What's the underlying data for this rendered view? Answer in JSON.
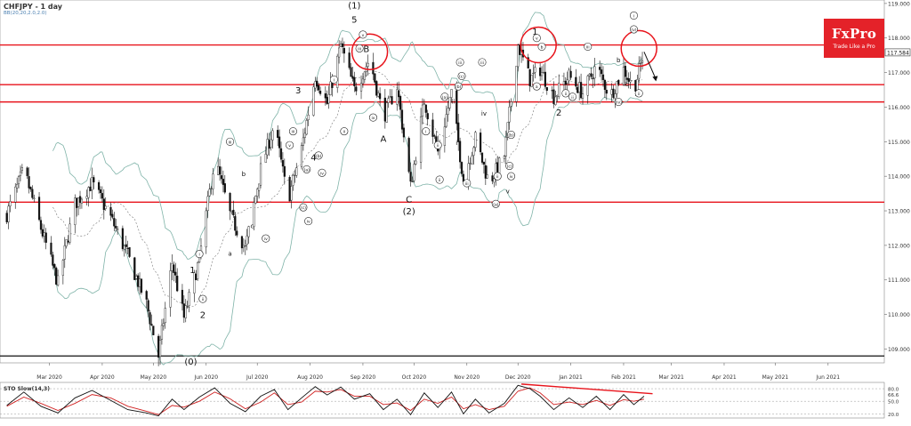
{
  "header": {
    "title": "CHFJPY - 1 day",
    "subtitle": "BB(20,20,2.0,2.0)"
  },
  "logo": {
    "name": "FxPro",
    "tagline": "Trade Like a Pro"
  },
  "colors": {
    "bull": "#2a8a2a",
    "bear": "#d02020",
    "resistance": "#e8131b",
    "band": "#7fb3a8",
    "price_box": "#ffffff",
    "sto_k": "#111111",
    "sto_d": "#d02020"
  },
  "chart_data": [
    {
      "type": "candlestick",
      "title": "CHFJPY - 1 day",
      "indicator": "BB(20,20,2.0,2.0)",
      "y_axis": {
        "range": [
          108.6,
          119.1
        ],
        "ticks": [
          "119.000",
          "118.000",
          "117.000",
          "116.000",
          "115.000",
          "114.000",
          "113.000",
          "112.000",
          "111.000",
          "110.000",
          "109.000"
        ],
        "last_price": "117.584"
      },
      "x_axis": {
        "labels": [
          "Mar 2020",
          "Apr 2020",
          "May 2020",
          "Jun 2020",
          "Jul 2020",
          "Aug 2020",
          "Sep 2020",
          "Oct 2020",
          "Nov 2020",
          "Dec 2020",
          "Jan 2021",
          "Feb 2021",
          "Mar 2021",
          "Apr 2021",
          "May 2021",
          "Jun 2021"
        ]
      },
      "horizontal_lines": [
        117.8,
        116.65,
        116.15,
        113.25,
        108.8
      ],
      "path": [
        [
          "2020-02-05",
          112.9
        ],
        [
          "2020-02-15",
          114.2
        ],
        [
          "2020-02-25",
          112.5
        ],
        [
          "2020-03-06",
          110.9
        ],
        [
          "2020-03-16",
          113.2
        ],
        [
          "2020-03-26",
          113.8
        ],
        [
          "2020-04-06",
          112.8
        ],
        [
          "2020-04-16",
          111.7
        ],
        [
          "2020-04-27",
          110.3
        ],
        [
          "2020-05-04",
          108.8
        ],
        [
          "2020-05-12",
          111.5
        ],
        [
          "2020-05-19",
          109.9
        ],
        [
          "2020-05-28",
          111.6
        ],
        [
          "2020-06-06",
          114.5
        ],
        [
          "2020-06-15",
          112.9
        ],
        [
          "2020-06-24",
          111.9
        ],
        [
          "2020-07-03",
          114.2
        ],
        [
          "2020-07-11",
          115.5
        ],
        [
          "2020-07-19",
          113.3
        ],
        [
          "2020-07-27",
          114.8
        ],
        [
          "2020-08-04",
          116.9
        ],
        [
          "2020-08-11",
          116.1
        ],
        [
          "2020-08-19",
          117.8
        ],
        [
          "2020-08-27",
          116.5
        ],
        [
          "2020-09-05",
          117.4
        ],
        [
          "2020-09-13",
          115.7
        ],
        [
          "2020-09-21",
          116.6
        ],
        [
          "2020-09-29",
          113.7
        ],
        [
          "2020-10-07",
          116.2
        ],
        [
          "2020-10-15",
          114.7
        ],
        [
          "2020-10-23",
          116.4
        ],
        [
          "2020-10-30",
          113.9
        ],
        [
          "2020-11-06",
          115.1
        ],
        [
          "2020-11-14",
          113.8
        ],
        [
          "2020-11-23",
          114.6
        ],
        [
          "2020-12-01",
          117.8
        ],
        [
          "2020-12-08",
          116.8
        ],
        [
          "2020-12-14",
          117.1
        ],
        [
          "2020-12-22",
          116.3
        ],
        [
          "2020-12-31",
          116.9
        ],
        [
          "2021-01-08",
          116.4
        ],
        [
          "2021-01-16",
          117.2
        ],
        [
          "2021-01-24",
          116.3
        ],
        [
          "2021-02-01",
          117.1
        ],
        [
          "2021-02-07",
          116.5
        ],
        [
          "2021-02-13",
          117.6
        ]
      ],
      "wave_labels": [
        {
          "text": "(1)",
          "date": "2020-08-27",
          "y": 118.85
        },
        {
          "text": "5",
          "date": "2020-08-27",
          "y": 118.45
        },
        {
          "text": "3",
          "date": "2020-07-25",
          "y": 116.4
        },
        {
          "text": "4",
          "date": "2020-08-03",
          "y": 114.45
        },
        {
          "text": "1",
          "date": "2020-05-24",
          "y": 111.2
        },
        {
          "text": "2",
          "date": "2020-05-30",
          "y": 109.9
        },
        {
          "text": "(0)",
          "date": "2020-05-23",
          "y": 108.55
        },
        {
          "text": "A",
          "date": "2020-09-13",
          "y": 115.0
        },
        {
          "text": "B",
          "date": "2020-09-03",
          "y": 117.6
        },
        {
          "text": "C",
          "date": "2020-09-28",
          "y": 113.25
        },
        {
          "text": "(2)",
          "date": "2020-09-28",
          "y": 112.9
        },
        {
          "text": "1",
          "date": "2020-12-11",
          "y": 118.1
        },
        {
          "text": "2",
          "date": "2020-12-25",
          "y": 115.75
        },
        {
          "text": "a",
          "date": "2020-06-15",
          "y": 111.7
        },
        {
          "text": "b",
          "date": "2020-06-23",
          "y": 114.0
        },
        {
          "text": "c",
          "date": "2020-06-28",
          "y": 112.5
        },
        {
          "text": "i",
          "date": "2020-10-26",
          "y": 114.9
        },
        {
          "text": "ii",
          "date": "2020-10-24",
          "y": 116.1
        },
        {
          "text": "iv",
          "date": "2020-11-11",
          "y": 115.75
        },
        {
          "text": "v",
          "date": "2020-11-25",
          "y": 113.5
        },
        {
          "text": "a",
          "date": "2021-01-29",
          "y": 116.05
        },
        {
          "text": "b",
          "date": "2021-01-29",
          "y": 117.3
        },
        {
          "text": "c",
          "date": "2021-02-03",
          "y": 116.6
        }
      ],
      "circled_labels": [
        {
          "text": "i",
          "date": "2020-05-28",
          "y": 111.75
        },
        {
          "text": "ii",
          "date": "2020-05-30",
          "y": 110.45
        },
        {
          "text": "iii",
          "date": "2020-06-15",
          "y": 115.0
        },
        {
          "text": "iii",
          "date": "2020-07-22",
          "y": 115.3
        },
        {
          "text": "iv",
          "date": "2020-07-06",
          "y": 112.2
        },
        {
          "text": "v",
          "date": "2020-07-20",
          "y": 114.9
        },
        {
          "text": "(a)",
          "date": "2020-07-30",
          "y": 114.2
        },
        {
          "text": "(b)",
          "date": "2020-08-06",
          "y": 114.6
        },
        {
          "text": "(c)",
          "date": "2020-07-28",
          "y": 113.1
        },
        {
          "text": "iv",
          "date": "2020-07-31",
          "y": 112.7
        },
        {
          "text": "iv",
          "date": "2020-08-08",
          "y": 114.1
        },
        {
          "text": "i",
          "date": "2020-08-15",
          "y": 116.8
        },
        {
          "text": "ii",
          "date": "2020-08-21",
          "y": 115.3
        },
        {
          "text": "iii",
          "date": "2020-08-30",
          "y": 117.7
        },
        {
          "text": "iv",
          "date": "2020-09-07",
          "y": 115.7
        },
        {
          "text": "v",
          "date": "2020-09-01",
          "y": 118.1
        },
        {
          "text": "(a)",
          "date": "2020-10-19",
          "y": 116.3
        },
        {
          "text": "(b)",
          "date": "2020-10-27",
          "y": 116.6
        },
        {
          "text": "(c)",
          "date": "2020-10-29",
          "y": 116.9
        },
        {
          "text": "i",
          "date": "2020-10-08",
          "y": 115.3
        },
        {
          "text": "ii",
          "date": "2020-10-15",
          "y": 114.9
        },
        {
          "text": "ii",
          "date": "2020-10-16",
          "y": 113.9
        },
        {
          "text": "iii",
          "date": "2020-10-28",
          "y": 117.3
        },
        {
          "text": "iii",
          "date": "2020-11-01",
          "y": 113.8
        },
        {
          "text": "iii",
          "date": "2020-11-10",
          "y": 117.3
        },
        {
          "text": "ii",
          "date": "2020-11-19",
          "y": 114.0
        },
        {
          "text": "(b)",
          "date": "2020-11-27",
          "y": 115.2
        },
        {
          "text": "(c)",
          "date": "2020-11-26",
          "y": 114.3
        },
        {
          "text": "iv",
          "date": "2020-11-27",
          "y": 114.0
        },
        {
          "text": "(a)",
          "date": "2020-11-18",
          "y": 113.2
        },
        {
          "text": "v",
          "date": "2020-12-12",
          "y": 118.0
        },
        {
          "text": "b",
          "date": "2020-12-15",
          "y": 117.75
        },
        {
          "text": "a",
          "date": "2020-12-12",
          "y": 116.6
        },
        {
          "text": "ii",
          "date": "2020-12-29",
          "y": 116.4
        },
        {
          "text": "iii",
          "date": "2021-01-11",
          "y": 117.75
        },
        {
          "text": "ii",
          "date": "2021-01-02",
          "y": 116.3
        },
        {
          "text": "(iv)",
          "date": "2021-01-29",
          "y": 116.15
        },
        {
          "text": "ii",
          "date": "2021-02-10",
          "y": 116.4
        },
        {
          "text": "i",
          "date": "2021-02-07",
          "y": 118.65
        },
        {
          "text": "(v)",
          "date": "2021-02-07",
          "y": 118.25
        }
      ],
      "highlight_circles": [
        {
          "date": "2020-09-05",
          "y": 117.6
        },
        {
          "date": "2020-12-13",
          "y": 117.8
        },
        {
          "date": "2021-02-10",
          "y": 117.7
        }
      ],
      "forecast_arrow": {
        "from": [
          "2021-02-13",
          117.6
        ],
        "to": [
          "2021-02-20",
          116.8
        ]
      }
    },
    {
      "type": "line",
      "title": "STO Slow(14,3)",
      "y_axis": {
        "range": [
          10,
          95
        ],
        "ticks": [
          "80.0",
          "66.6",
          "50.0",
          "20.0"
        ]
      },
      "x_axis": {
        "labels": [
          "Mar 2020",
          "Apr 2020",
          "May 2020",
          "Jun 2020",
          "Jul 2020",
          "Aug 2020",
          "Sep 2020",
          "Oct 2020",
          "Nov 2020",
          "Dec 2020",
          "Jan 2021",
          "Feb 2021",
          "Mar 2021",
          "Apr 2021",
          "May 2021",
          "Jun 2021"
        ]
      },
      "horizontal_lines": [
        80,
        50,
        20
      ],
      "series": [
        {
          "values": [
            [
              "2020-02-05",
              40
            ],
            [
              "2020-02-15",
              72
            ],
            [
              "2020-02-25",
              38
            ],
            [
              "2020-03-06",
              22
            ],
            [
              "2020-03-16",
              58
            ],
            [
              "2020-03-26",
              76
            ],
            [
              "2020-04-06",
              52
            ],
            [
              "2020-04-16",
              30
            ],
            [
              "2020-04-27",
              22
            ],
            [
              "2020-05-04",
              15
            ],
            [
              "2020-05-12",
              55
            ],
            [
              "2020-05-19",
              30
            ],
            [
              "2020-05-28",
              60
            ],
            [
              "2020-06-06",
              82
            ],
            [
              "2020-06-15",
              45
            ],
            [
              "2020-06-24",
              25
            ],
            [
              "2020-07-03",
              62
            ],
            [
              "2020-07-11",
              78
            ],
            [
              "2020-07-19",
              30
            ],
            [
              "2020-07-27",
              58
            ],
            [
              "2020-08-04",
              85
            ],
            [
              "2020-08-11",
              65
            ],
            [
              "2020-08-19",
              84
            ],
            [
              "2020-08-27",
              55
            ],
            [
              "2020-09-05",
              68
            ],
            [
              "2020-09-13",
              30
            ],
            [
              "2020-09-21",
              55
            ],
            [
              "2020-09-29",
              18
            ],
            [
              "2020-10-07",
              70
            ],
            [
              "2020-10-15",
              35
            ],
            [
              "2020-10-23",
              72
            ],
            [
              "2020-10-30",
              20
            ],
            [
              "2020-11-06",
              55
            ],
            [
              "2020-11-14",
              22
            ],
            [
              "2020-11-23",
              45
            ],
            [
              "2020-12-01",
              88
            ],
            [
              "2020-12-08",
              80
            ],
            [
              "2020-12-14",
              62
            ],
            [
              "2020-12-22",
              30
            ],
            [
              "2020-12-31",
              58
            ],
            [
              "2021-01-08",
              35
            ],
            [
              "2021-01-16",
              62
            ],
            [
              "2021-01-24",
              30
            ],
            [
              "2021-02-01",
              66
            ],
            [
              "2021-02-07",
              42
            ],
            [
              "2021-02-13",
              62
            ]
          ]
        },
        {
          "values": [
            [
              "2020-02-05",
              38
            ],
            [
              "2020-02-15",
              60
            ],
            [
              "2020-02-25",
              45
            ],
            [
              "2020-03-06",
              28
            ],
            [
              "2020-03-16",
              45
            ],
            [
              "2020-03-26",
              66
            ],
            [
              "2020-04-06",
              58
            ],
            [
              "2020-04-16",
              38
            ],
            [
              "2020-04-27",
              26
            ],
            [
              "2020-05-04",
              18
            ],
            [
              "2020-05-12",
              40
            ],
            [
              "2020-05-19",
              36
            ],
            [
              "2020-05-28",
              50
            ],
            [
              "2020-06-06",
              72
            ],
            [
              "2020-06-15",
              56
            ],
            [
              "2020-06-24",
              32
            ],
            [
              "2020-07-03",
              48
            ],
            [
              "2020-07-11",
              70
            ],
            [
              "2020-07-19",
              42
            ],
            [
              "2020-07-27",
              48
            ],
            [
              "2020-08-04",
              74
            ],
            [
              "2020-08-11",
              72
            ],
            [
              "2020-08-19",
              78
            ],
            [
              "2020-08-27",
              62
            ],
            [
              "2020-09-05",
              62
            ],
            [
              "2020-09-13",
              42
            ],
            [
              "2020-09-21",
              46
            ],
            [
              "2020-09-29",
              28
            ],
            [
              "2020-10-07",
              55
            ],
            [
              "2020-10-15",
              45
            ],
            [
              "2020-10-23",
              60
            ],
            [
              "2020-10-30",
              32
            ],
            [
              "2020-11-06",
              42
            ],
            [
              "2020-11-14",
              30
            ],
            [
              "2020-11-23",
              38
            ],
            [
              "2020-12-01",
              74
            ],
            [
              "2020-12-08",
              82
            ],
            [
              "2020-12-14",
              70
            ],
            [
              "2020-12-22",
              42
            ],
            [
              "2020-12-31",
              48
            ],
            [
              "2021-01-08",
              42
            ],
            [
              "2021-01-16",
              52
            ],
            [
              "2021-01-24",
              40
            ],
            [
              "2021-02-01",
              54
            ],
            [
              "2021-02-07",
              50
            ],
            [
              "2021-02-13",
              55
            ]
          ]
        }
      ],
      "trend_line": {
        "from": [
          "2020-12-03",
          91
        ],
        "to": [
          "2021-02-18",
          68
        ]
      }
    }
  ]
}
